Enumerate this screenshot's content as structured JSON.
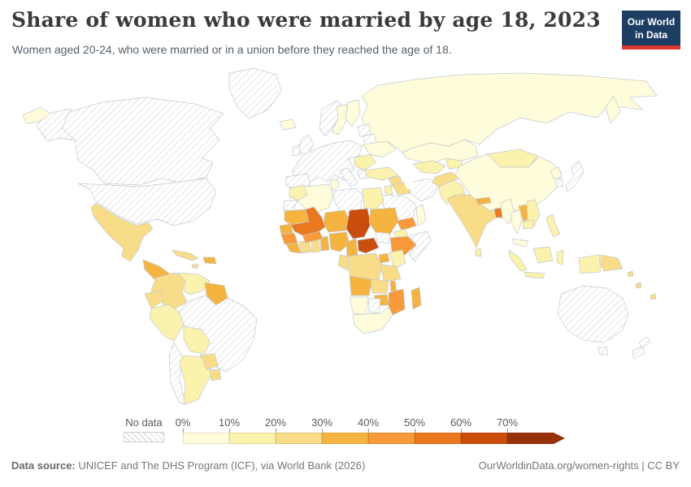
{
  "header": {
    "title": "Share of women who were married by age 18, 2023",
    "subtitle": "Women aged 20-24, who were married or in a union before they reached the age of 18.",
    "logo": {
      "line1": "Our World",
      "line2": "in Data",
      "bg_color": "#1d3d63",
      "accent_color": "#dc3a30"
    }
  },
  "legend": {
    "no_data_label": "No data",
    "tick_labels": [
      "0%",
      "10%",
      "20%",
      "30%",
      "40%",
      "50%",
      "60%",
      "70%"
    ],
    "segment_width": 57,
    "arrow_extra": 14
  },
  "footer": {
    "source_label": "Data source:",
    "source_text": " UNICEF and The DHS Program (ICF), via World Bank (2026)",
    "link_text": "OurWorldinData.org/women-rights | CC BY"
  },
  "chart_data": {
    "type": "choropleth_map",
    "title": "Share of women who were married by age 18, 2023",
    "unit": "%",
    "legend_ticks": [
      "0%",
      "10%",
      "20%",
      "30%",
      "40%",
      "50%",
      "60%",
      "70%"
    ],
    "bins": [
      {
        "range": "0-10%",
        "color": "#fefcda"
      },
      {
        "range": "10-20%",
        "color": "#fbf2ad"
      },
      {
        "range": "20-30%",
        "color": "#f8dc88"
      },
      {
        "range": "30-40%",
        "color": "#f5b33f"
      },
      {
        "range": "40-50%",
        "color": "#f99a3a"
      },
      {
        "range": "50-60%",
        "color": "#e9781f"
      },
      {
        "range": "60-70%",
        "color": "#ca4d0d"
      },
      {
        "range": "70%+",
        "color": "#96310a"
      }
    ],
    "no_data": {
      "label": "No data",
      "style": "white with gray diagonal hatching"
    },
    "ocean_color": "#ffffff",
    "border_color": "#c3c9ce",
    "countries": {
      "canada": "nd",
      "united-states": "nd",
      "alaska": "nd",
      "greenland": "nd",
      "mexico": 2,
      "central-america": 3,
      "cuba": 2,
      "hispaniola": 3,
      "jamaica": 2,
      "colombia": 2,
      "venezuela": 1,
      "guyana-suriname": 3,
      "ecuador": 2,
      "peru": 1,
      "brazil": "nd",
      "bolivia": 1,
      "paraguay": 2,
      "chile": "nd",
      "argentina": 1,
      "uruguay": 2,
      "iceland": 0,
      "united-kingdom": "nd",
      "ireland": "nd",
      "norway": "nd",
      "sweden": 0,
      "finland": 0,
      "western-europe": "nd",
      "iberia": "nd",
      "italy": "nd",
      "greece": "nd",
      "baltics": "nd",
      "belarus": "nd",
      "ukraine": 0,
      "romania-balkans": 1,
      "russia": 0,
      "russia-chukotka": 0,
      "russia-kamchatka": 0,
      "turkey": 1,
      "syria": 2,
      "iraq": 2,
      "jordan-israel": 1,
      "saudi-arabia": "nd",
      "yemen": 4,
      "oman": 0,
      "iran": "nd",
      "kazakhstan": 0,
      "uzbekistan-turkmenistan": 1,
      "kyrgyzstan-tajikistan": 1,
      "afghanistan": 2,
      "pakistan": 1,
      "india": 2,
      "nepal": 3,
      "bangladesh": 5,
      "sri-lanka": 1,
      "mongolia": 1,
      "china": 0,
      "north-korea": 0,
      "south-korea": "nd",
      "japan": "nd",
      "myanmar": 0,
      "thailand": 0,
      "laos": 3,
      "vietnam": 1,
      "cambodia": 1,
      "malaysia": 0,
      "philippines": 1,
      "indonesia": 1,
      "papua-new-guinea": 2,
      "pacific-islands": 2,
      "australia": "nd",
      "new-zealand": "nd",
      "morocco": 1,
      "western-sahara": "nd",
      "algeria": 0,
      "tunisia": 0,
      "libya": "nd",
      "egypt": 1,
      "mauritania": 3,
      "mali": 5,
      "niger": 3,
      "chad": 6,
      "sudan": 3,
      "south-sudan": "nd",
      "eritrea": 1,
      "ethiopia": 4,
      "somalia": "nd",
      "senegal-gambia": 3,
      "guinea": 4,
      "sierra-leone-liberia": 3,
      "cote-divoire": 2,
      "ghana": 2,
      "togo-benin": 3,
      "burkina-faso": 4,
      "nigeria": 3,
      "cameroon": 3,
      "central-african-republic": 6,
      "gabon-congo": 2,
      "dr-congo": 2,
      "uganda": 3,
      "kenya": 1,
      "tanzania": 2,
      "angola": 3,
      "zambia": 2,
      "malawi": 3,
      "mozambique": 4,
      "zimbabwe": 3,
      "madagascar": 3,
      "namibia": 0,
      "botswana": "nd",
      "south-africa": 0
    }
  }
}
